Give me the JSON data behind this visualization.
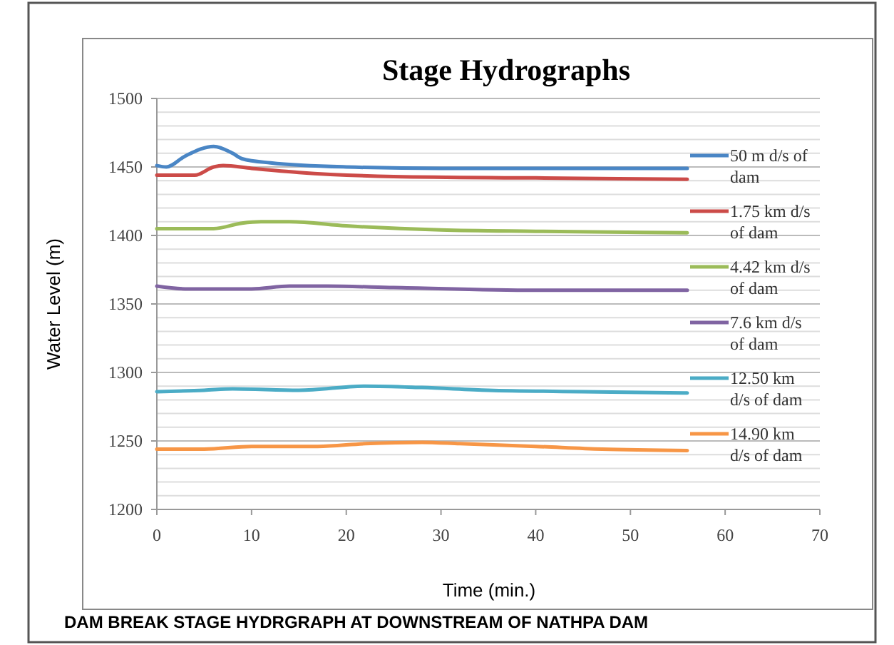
{
  "chart_data": {
    "type": "line",
    "title": "Stage Hydrographs",
    "xlabel": "Time (min.)",
    "ylabel": "Water Level (m)",
    "annotations": [
      "DAM BREAK STAGE HYDRGRAPH AT DOWNSTREAM OF NATHPA DAM"
    ],
    "xlim": [
      0,
      70
    ],
    "xticks": [
      0,
      10,
      20,
      30,
      40,
      50,
      60,
      70
    ],
    "ylim": [
      1200,
      1500
    ],
    "yticks": [
      1200,
      1250,
      1300,
      1350,
      1400,
      1450,
      1500
    ],
    "grid": "y",
    "legend": "right",
    "marker": "none",
    "line_style": "solid",
    "series": [
      {
        "name": "50 m d/s of dam",
        "color": "#4a86c5",
        "x": [
          0,
          1,
          3,
          6,
          8,
          9,
          12,
          20,
          30,
          56
        ],
        "values": [
          1451,
          1450,
          1458,
          1465,
          1460,
          1456,
          1453,
          1450,
          1449,
          1449
        ]
      },
      {
        "name": "1.75 km d/s of dam",
        "color": "#cc4b48",
        "x": [
          0,
          4,
          6,
          7,
          10,
          15,
          25,
          40,
          56
        ],
        "values": [
          1444,
          1444,
          1450,
          1451,
          1449,
          1446,
          1443,
          1442,
          1441
        ]
      },
      {
        "name": "4.42 km d/s of dam",
        "color": "#9bbb59",
        "x": [
          0,
          6,
          9,
          11,
          14,
          20,
          30,
          40,
          56
        ],
        "values": [
          1405,
          1405,
          1409,
          1410,
          1410,
          1407,
          1404,
          1403,
          1402
        ]
      },
      {
        "name": "7.6 km d/s of dam",
        "color": "#8064a2",
        "x": [
          0,
          3,
          10,
          14,
          18,
          25,
          40,
          56
        ],
        "values": [
          1363,
          1361,
          1361,
          1363,
          1363,
          1362,
          1360,
          1360
        ]
      },
      {
        "name": "12.50 km d/s of dam",
        "color": "#4bacc6",
        "x": [
          0,
          5,
          8,
          15,
          22,
          28,
          35,
          45,
          56
        ],
        "values": [
          1286,
          1287,
          1288,
          1287,
          1290,
          1289,
          1287,
          1286,
          1285
        ]
      },
      {
        "name": "14.90 km d/s of dam",
        "color": "#f79646",
        "x": [
          0,
          5,
          10,
          17,
          22,
          28,
          32,
          40,
          47,
          56
        ],
        "values": [
          1244,
          1244,
          1246,
          1246,
          1248,
          1249,
          1248,
          1246,
          1244,
          1243
        ]
      }
    ]
  }
}
